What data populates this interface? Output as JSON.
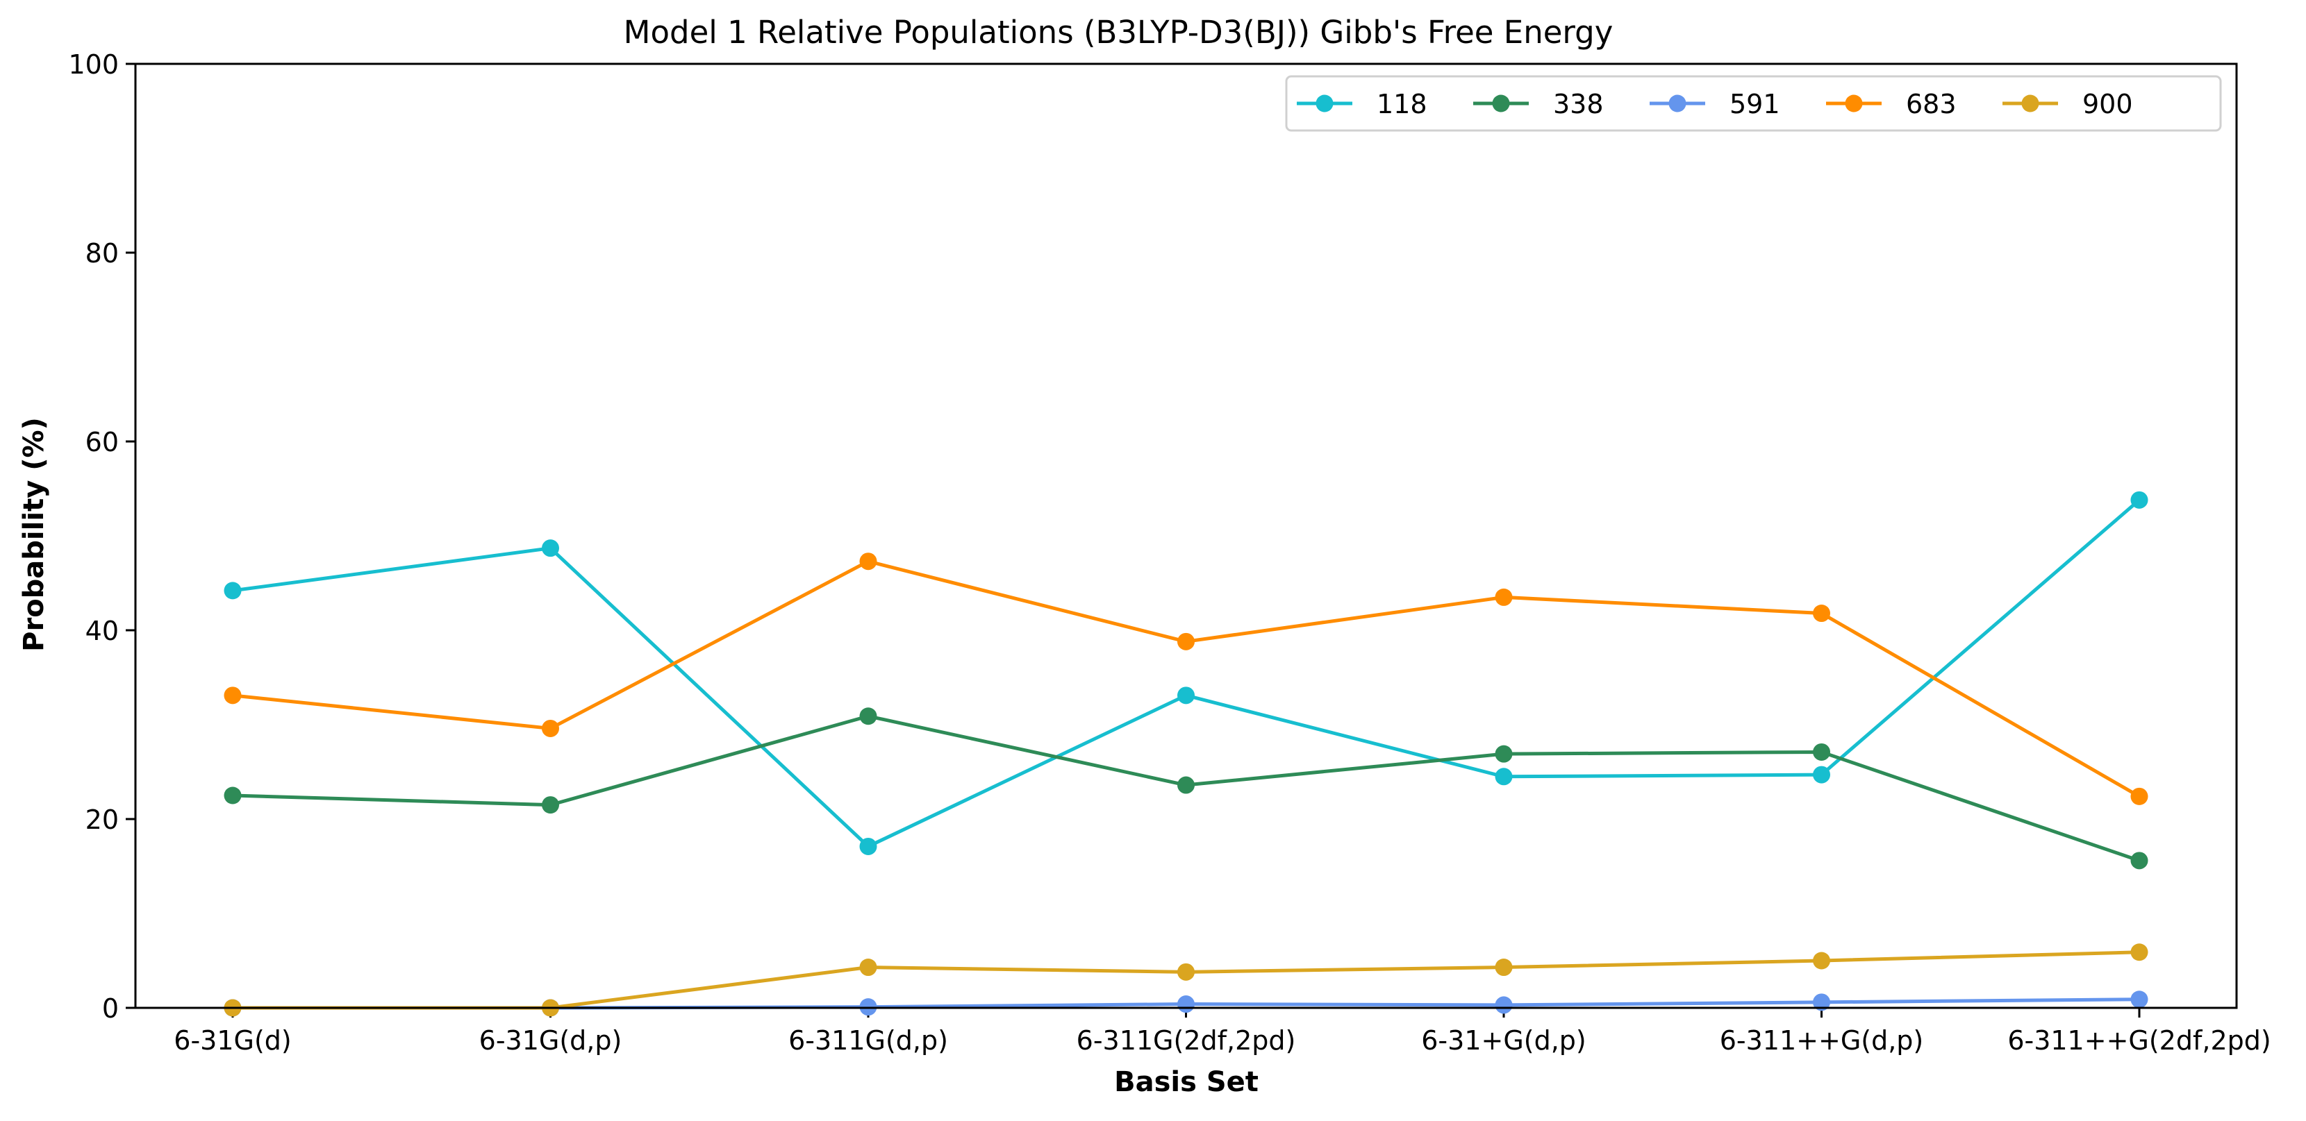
{
  "chart_data": {
    "type": "line",
    "title": "Model 1 Relative Populations (B3LYP-D3(BJ)) Gibb's Free Energy",
    "xlabel": "Basis Set",
    "ylabel": "Probability (%)",
    "categories": [
      "6-31G(d)",
      "6-31G(d,p)",
      "6-311G(d,p)",
      "6-311G(2df,2pd)",
      "6-31+G(d,p)",
      "6-311++G(d,p)",
      "6-311++G(2df,2pd)"
    ],
    "ylim": [
      0,
      100
    ],
    "yticks": [
      0,
      20,
      40,
      60,
      80,
      100
    ],
    "grid": false,
    "legend": {
      "position": "top-right",
      "columns": 5
    },
    "series": [
      {
        "name": "118",
        "color": "#17becf",
        "values": [
          44.2,
          48.7,
          17.1,
          33.1,
          24.5,
          24.7,
          53.8
        ]
      },
      {
        "name": "338",
        "color": "#2e8b57",
        "values": [
          22.5,
          21.5,
          30.9,
          23.6,
          26.9,
          27.1,
          15.6
        ]
      },
      {
        "name": "591",
        "color": "#6495ed",
        "values": [
          0.0,
          0.0,
          0.1,
          0.4,
          0.3,
          0.6,
          0.9
        ]
      },
      {
        "name": "683",
        "color": "#ff8c00",
        "values": [
          33.1,
          29.6,
          47.3,
          38.8,
          43.5,
          41.8,
          22.4
        ]
      },
      {
        "name": "900",
        "color": "#daa520",
        "values": [
          0.0,
          0.0,
          4.3,
          3.8,
          4.3,
          5.0,
          5.9
        ]
      }
    ]
  }
}
